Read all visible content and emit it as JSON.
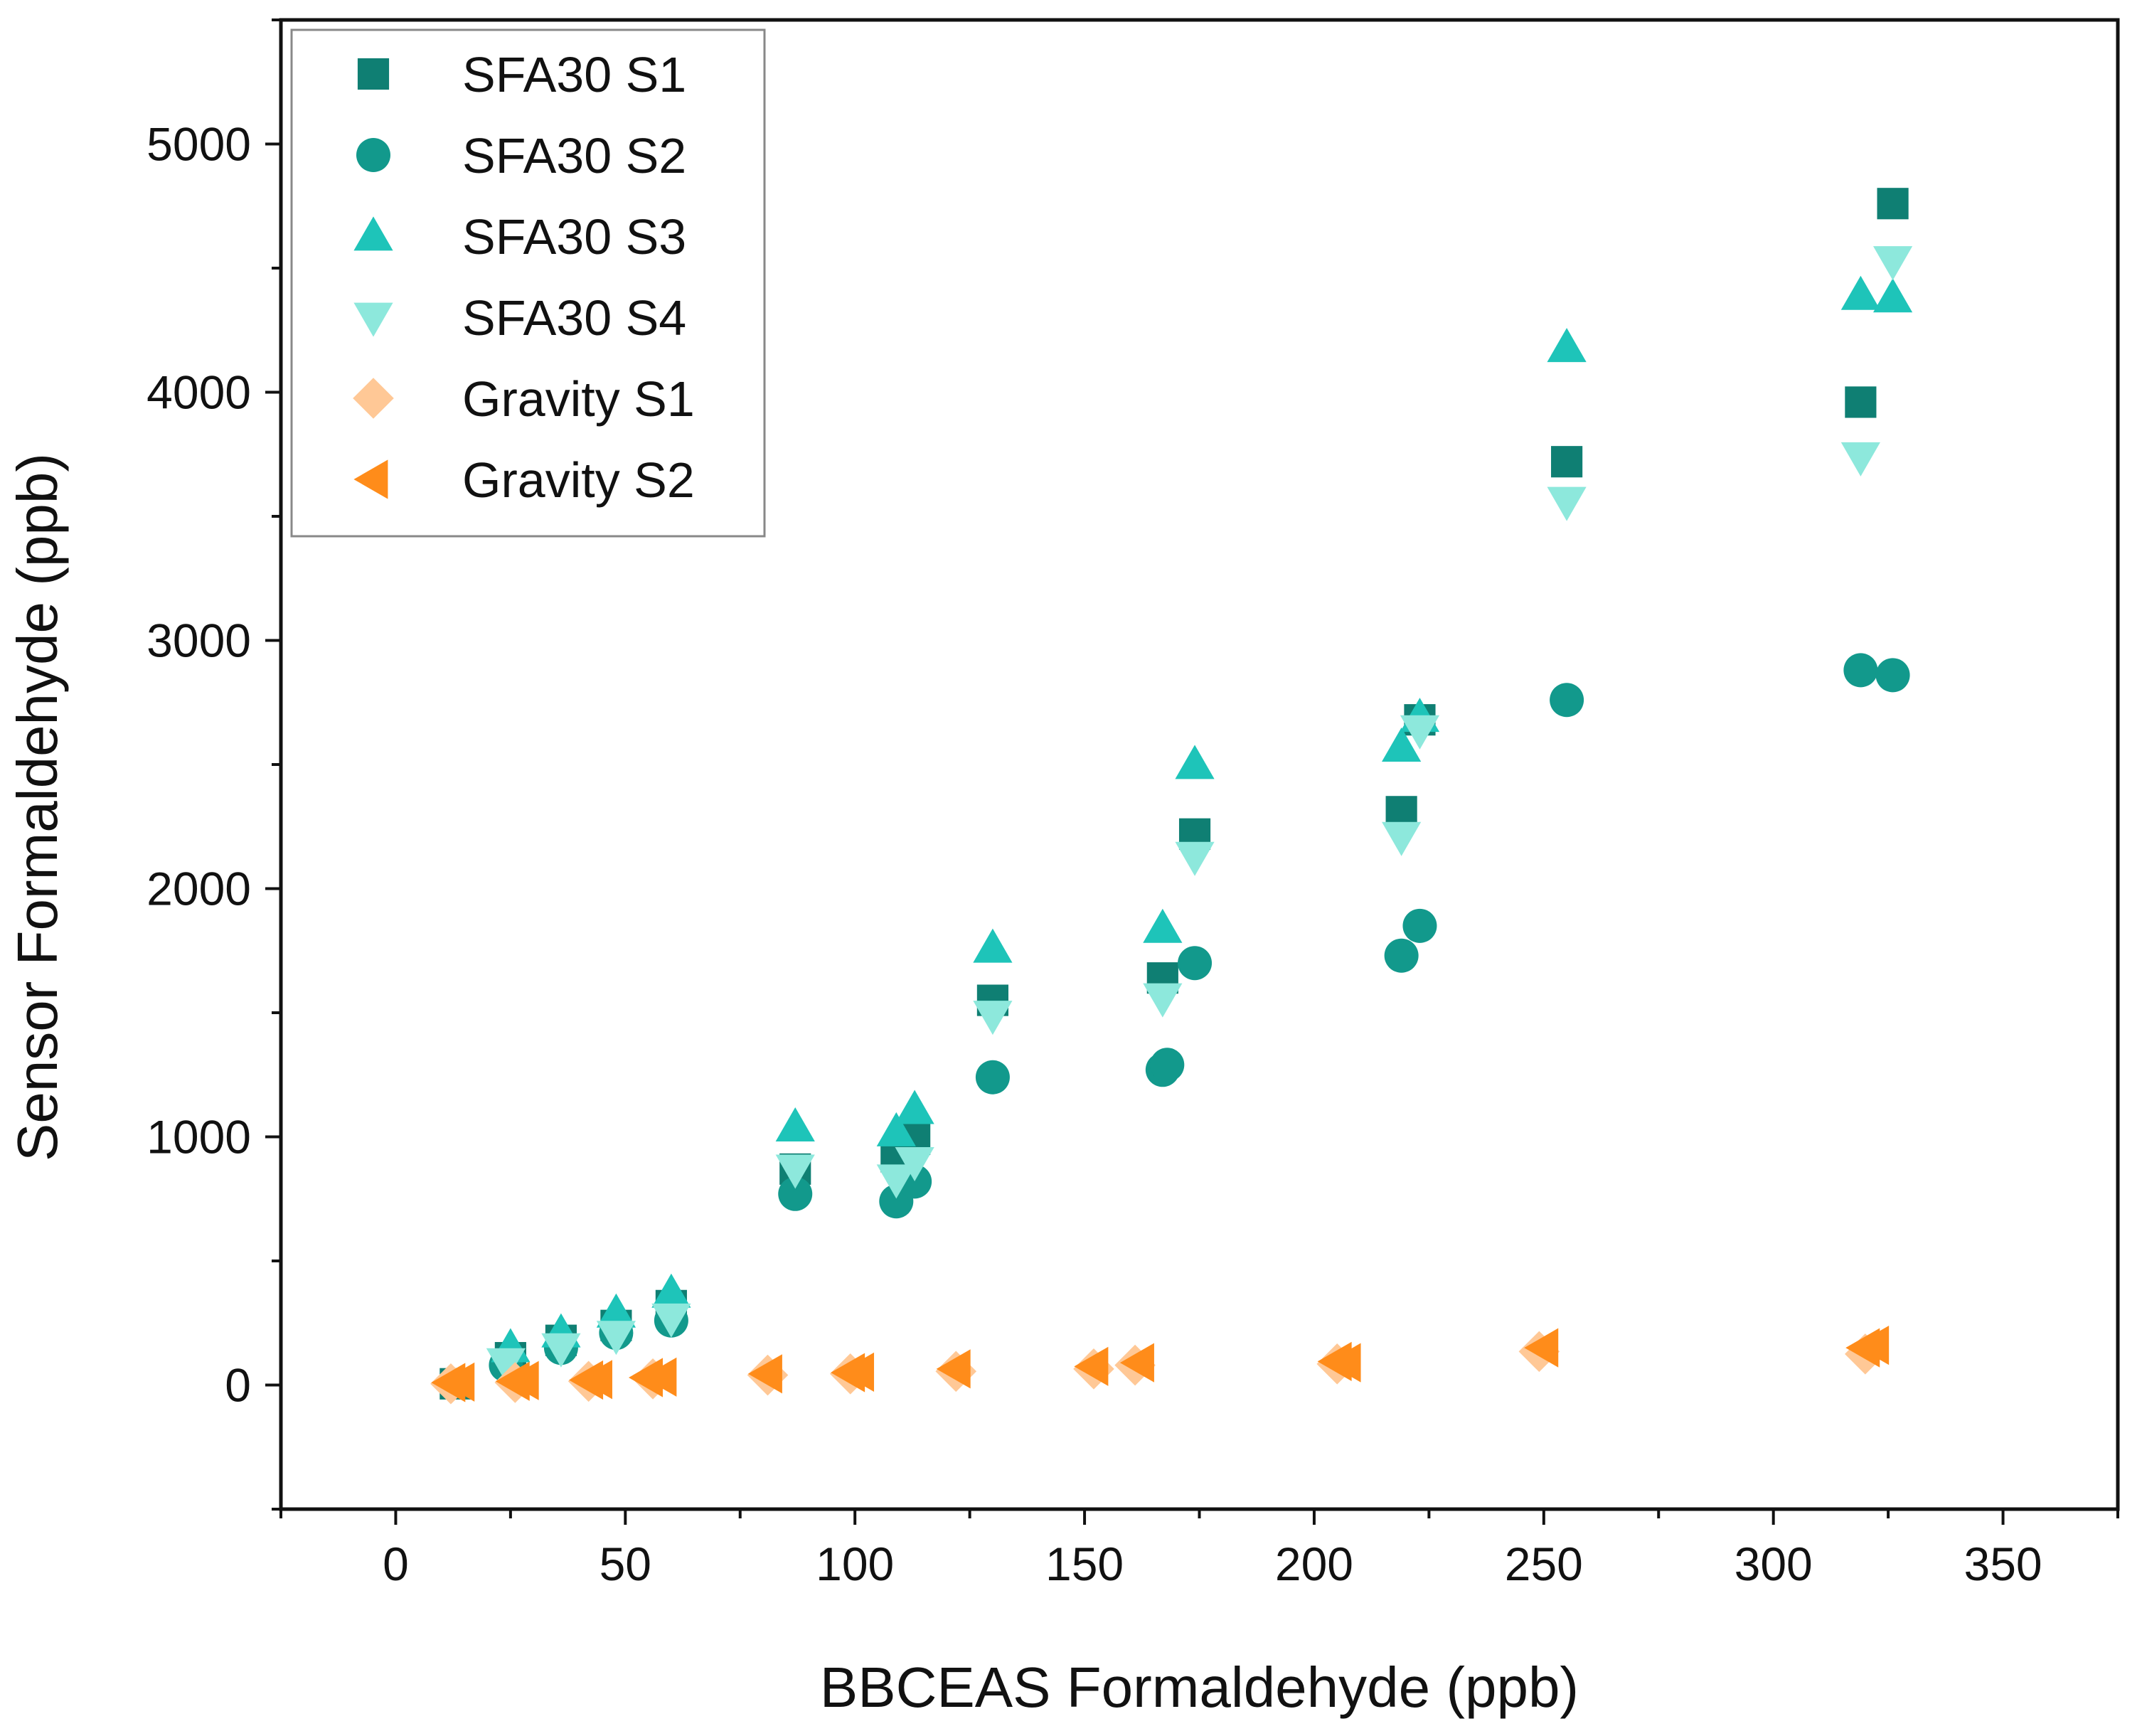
{
  "chart_data": {
    "type": "scatter",
    "xlabel": "BBCEAS Formaldehyde (ppb)",
    "ylabel": "Sensor Formaldehyde (ppb)",
    "xlim": [
      -25,
      375
    ],
    "ylim": [
      -500,
      5500
    ],
    "x_ticks": [
      0,
      50,
      100,
      150,
      200,
      250,
      300,
      350
    ],
    "y_ticks": [
      0,
      1000,
      2000,
      3000,
      4000,
      5000
    ],
    "legend_position": "top-left",
    "series": [
      {
        "name": "SFA30 S1",
        "marker": "square",
        "color": "#0f7f73",
        "x": [
          13,
          25,
          36,
          48,
          60,
          87,
          109,
          113,
          130,
          167,
          174,
          219,
          223,
          255,
          319,
          326
        ],
        "y": [
          5,
          110,
          180,
          240,
          320,
          870,
          920,
          990,
          1550,
          1640,
          2220,
          2310,
          2680,
          3720,
          3960,
          4760
        ]
      },
      {
        "name": "SFA30 S2",
        "marker": "circle",
        "color": "#12998c",
        "x": [
          24,
          36,
          48,
          60,
          87,
          109,
          113,
          130,
          167,
          168,
          174,
          219,
          223,
          255,
          319,
          326
        ],
        "y": [
          80,
          150,
          210,
          260,
          770,
          740,
          820,
          1240,
          1270,
          1290,
          1700,
          1730,
          1850,
          2760,
          2880,
          2860
        ]
      },
      {
        "name": "SFA30 S3",
        "marker": "triangle-up",
        "color": "#1ec4b9",
        "x": [
          25,
          36,
          48,
          60,
          87,
          109,
          113,
          130,
          167,
          174,
          219,
          223,
          255,
          319,
          326
        ],
        "y": [
          150,
          210,
          290,
          370,
          1040,
          1020,
          1110,
          1760,
          1840,
          2500,
          2570,
          2690,
          4180,
          4390,
          4380
        ]
      },
      {
        "name": "SFA30 S4",
        "marker": "triangle-down",
        "color": "#8de8dc",
        "x": [
          24,
          36,
          48,
          60,
          87,
          109,
          113,
          130,
          167,
          174,
          219,
          223,
          255,
          319,
          326
        ],
        "y": [
          90,
          150,
          200,
          270,
          870,
          830,
          900,
          1490,
          1560,
          2130,
          2210,
          2640,
          3560,
          3740,
          4530
        ]
      },
      {
        "name": "Gravity S1",
        "marker": "diamond",
        "color": "#ffc896",
        "x": [
          12,
          26,
          42,
          56,
          81,
          99,
          122,
          152,
          161,
          205,
          249,
          320
        ],
        "y": [
          5,
          10,
          15,
          25,
          40,
          45,
          55,
          65,
          80,
          85,
          135,
          125
        ]
      },
      {
        "name": "Gravity S2",
        "marker": "triangle-left",
        "color": "#ff8c1a",
        "x": [
          12,
          14,
          26,
          28,
          42,
          44,
          55,
          58,
          81,
          99,
          101,
          122,
          152,
          162,
          205,
          207,
          250,
          320,
          322
        ],
        "y": [
          10,
          12,
          15,
          18,
          20,
          22,
          30,
          32,
          45,
          50,
          52,
          65,
          75,
          90,
          95,
          90,
          150,
          150,
          160
        ]
      }
    ]
  }
}
